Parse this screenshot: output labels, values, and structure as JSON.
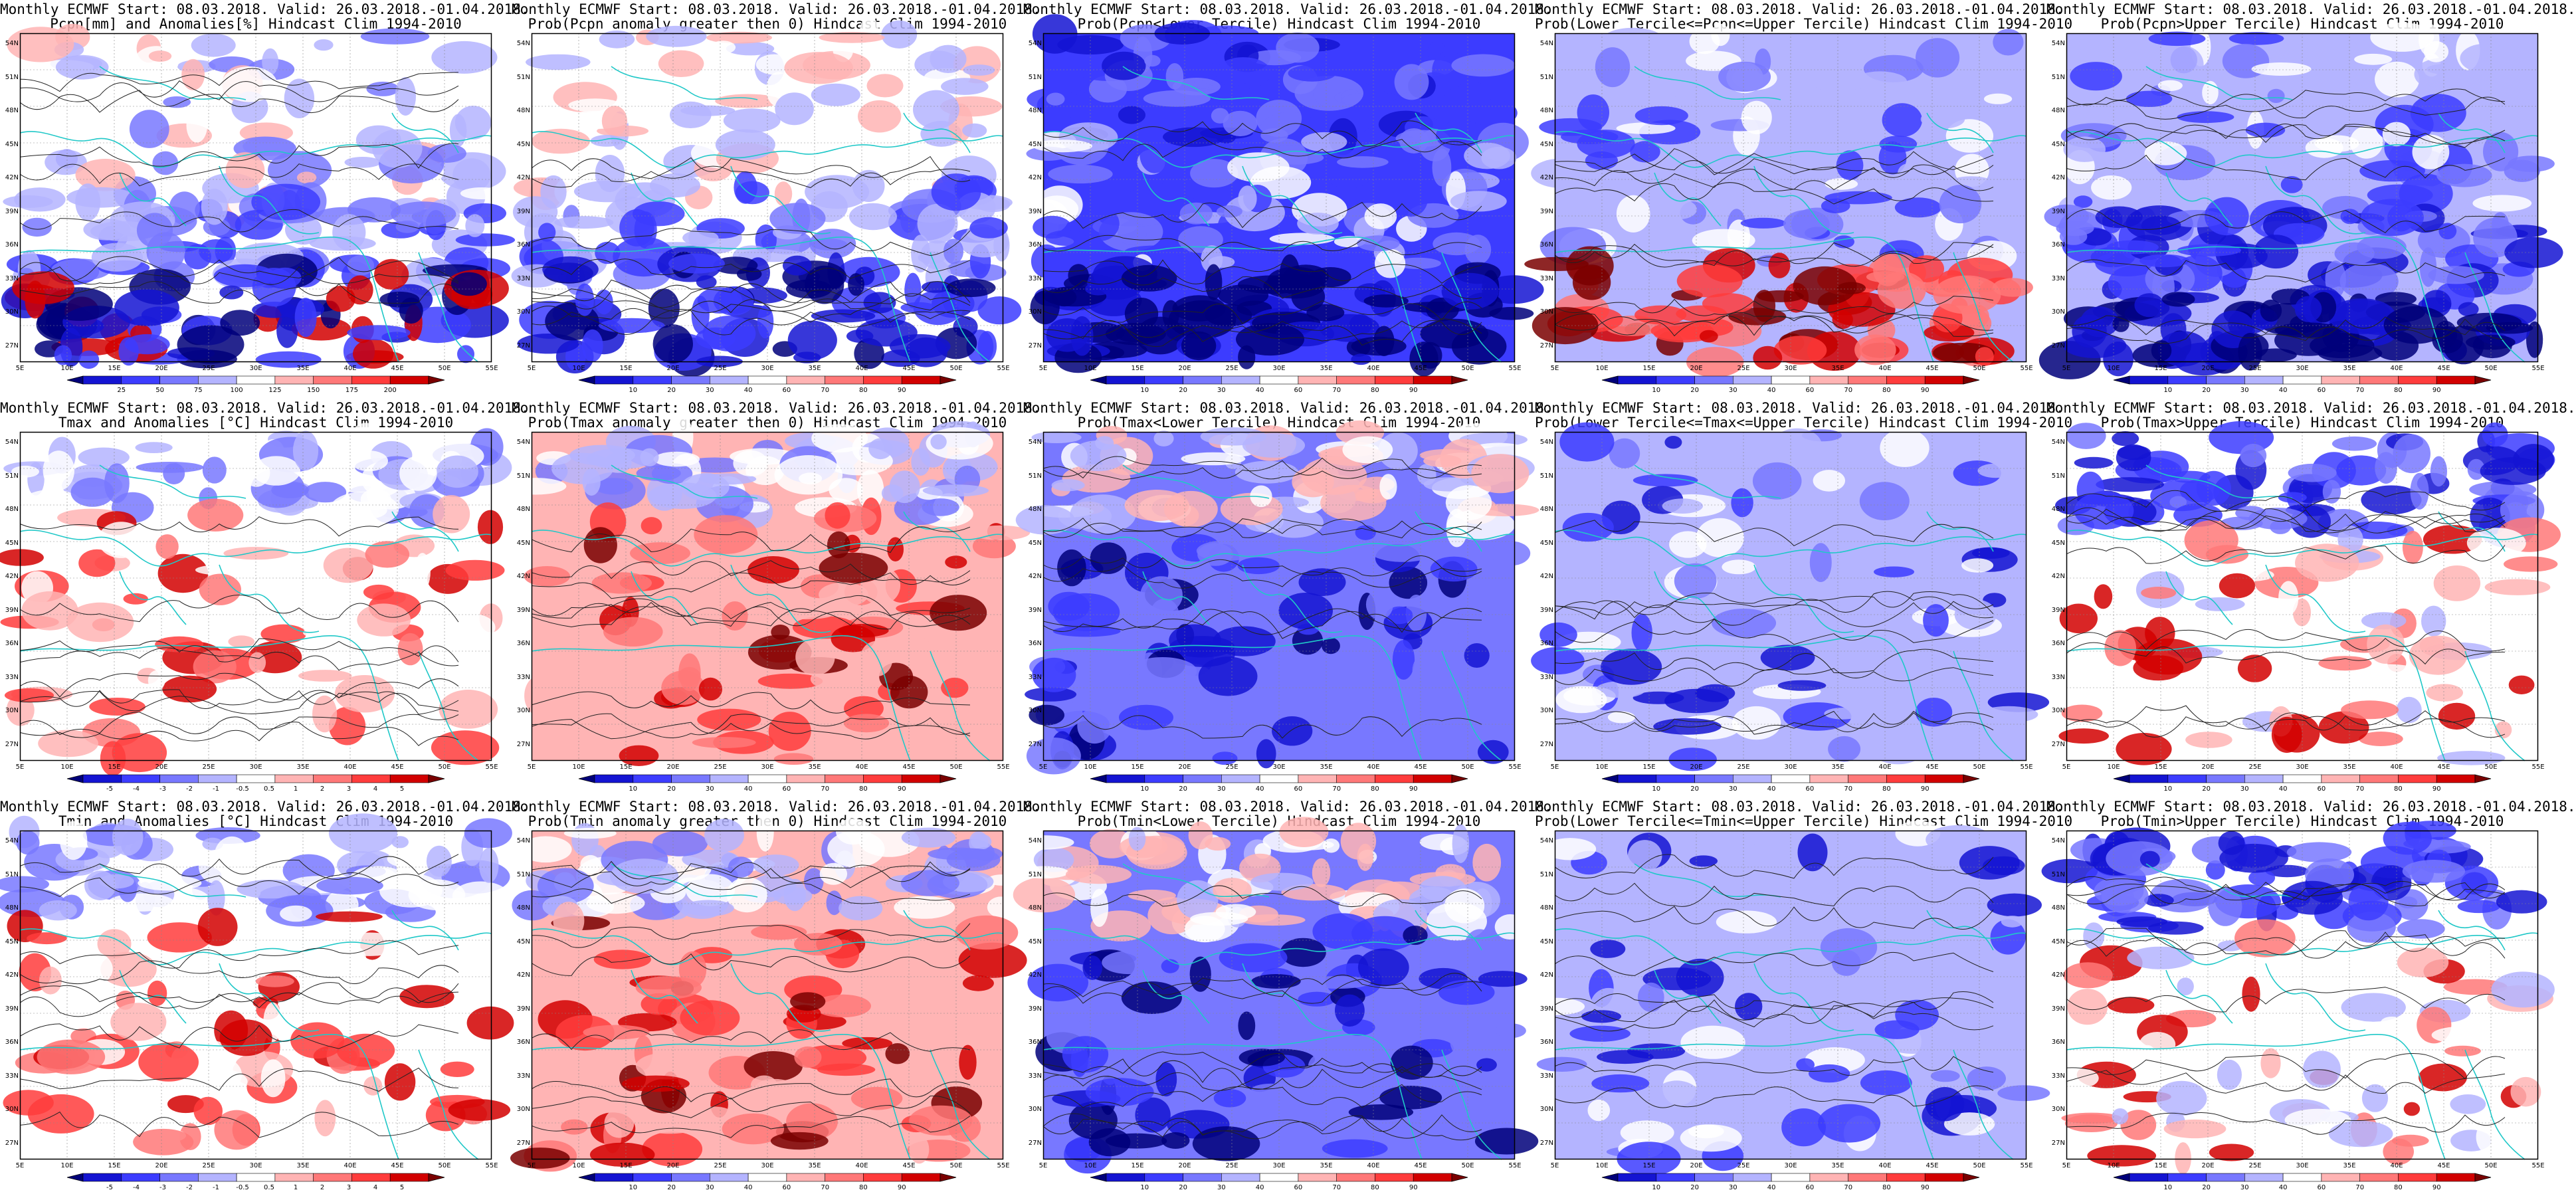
{
  "lat_labels": [
    "54N",
    "51N",
    "48N",
    "45N",
    "42N",
    "39N",
    "36N",
    "33N",
    "30N",
    "27N"
  ],
  "lon_labels": [
    "5E",
    "10E",
    "15E",
    "20E",
    "25E",
    "30E",
    "35E",
    "40E",
    "45E",
    "50E",
    "55E"
  ],
  "colorbars": {
    "pcpn_anom": {
      "ticks": [
        "25",
        "50",
        "75",
        "100",
        "125",
        "150",
        "175",
        "200"
      ],
      "colors": [
        "#00007a",
        "#1414d2",
        "#3c3cff",
        "#7878ff",
        "#b4b4ff",
        "#ffffff",
        "#ffb4b4",
        "#ff7878",
        "#ff3c3c",
        "#d20000",
        "#7a0000"
      ]
    },
    "prob": {
      "ticks": [
        "10",
        "20",
        "30",
        "40",
        "60",
        "70",
        "80",
        "90"
      ],
      "colors": [
        "#00007a",
        "#1414d2",
        "#3c3cff",
        "#7878ff",
        "#b4b4ff",
        "#ffffff",
        "#ffb4b4",
        "#ff7878",
        "#ff3c3c",
        "#d20000",
        "#7a0000"
      ]
    },
    "temp_anom": {
      "ticks": [
        "-5",
        "-4",
        "-3",
        "-2",
        "-1",
        "-0.5",
        "0.5",
        "1",
        "2",
        "3",
        "4",
        "5"
      ],
      "colors": [
        "#00007a",
        "#1414d2",
        "#3c3cff",
        "#7878ff",
        "#b4b4ff",
        "#ffffff",
        "#ffb4b4",
        "#ff7878",
        "#ff3c3c",
        "#d20000",
        "#7a0000"
      ]
    }
  },
  "panels": [
    {
      "line1": "Monthly ECMWF Start: 08.03.2018. Valid: 26.03.2018.-01.04.2018.",
      "line2": "Pcpn[mm] and Anomalies[%] Hindcast Clim 1994-2010",
      "cbar": "pcpn_anom",
      "style": "pcpn_anom"
    },
    {
      "line1": "Monthly ECMWF Start: 08.03.2018. Valid: 26.03.2018.-01.04.2018.",
      "line2": "Prob(Pcpn anomaly greater then 0) Hindcast Clim 1994-2010",
      "cbar": "prob",
      "style": "pcpn_gt0"
    },
    {
      "line1": "Monthly ECMWF Start: 08.03.2018. Valid: 26.03.2018.-01.04.2018.",
      "line2": "Prob(Pcpn<Lower Tercile) Hindcast Clim 1994-2010",
      "cbar": "prob",
      "style": "pcpn_low"
    },
    {
      "line1": "Monthly ECMWF Start: 08.03.2018. Valid: 26.03.2018.-01.04.2018.",
      "line2": "Prob(Lower Tercile<=Pcpn<=Upper Tercile) Hindcast Clim 1994-2010",
      "cbar": "prob",
      "style": "pcpn_mid"
    },
    {
      "line1": "Monthly ECMWF Start: 08.03.2018. Valid: 26.03.2018.-01.04.2018.",
      "line2": "Prob(Pcpn>Upper Tercile) Hindcast Clim 1994-2010",
      "cbar": "prob",
      "style": "pcpn_up"
    },
    {
      "line1": "Monthly ECMWF Start: 08.03.2018. Valid: 26.03.2018.-01.04.2018.",
      "line2": "Tmax and Anomalies [°C] Hindcast Clim 1994-2010",
      "cbar": "temp_anom",
      "style": "t_anom"
    },
    {
      "line1": "Monthly ECMWF Start: 08.03.2018. Valid: 26.03.2018.-01.04.2018.",
      "line2": "Prob(Tmax anomaly greater then 0) Hindcast Clim 1994-2010",
      "cbar": "prob",
      "style": "t_gt0"
    },
    {
      "line1": "Monthly ECMWF Start: 08.03.2018. Valid: 26.03.2018.-01.04.2018.",
      "line2": "Prob(Tmax<Lower Tercile) Hindcast Clim 1994-2010",
      "cbar": "prob",
      "style": "t_low"
    },
    {
      "line1": "Monthly ECMWF Start: 08.03.2018. Valid: 26.03.2018.-01.04.2018.",
      "line2": "Prob(Lower Tercile<=Tmax<=Upper Tercile) Hindcast Clim 1994-2010",
      "cbar": "prob",
      "style": "t_mid"
    },
    {
      "line1": "Monthly ECMWF Start: 08.03.2018. Valid: 26.03.2018.-01.04.2018.",
      "line2": "Prob(Tmax>Upper Tercile) Hindcast Clim 1994-2010",
      "cbar": "prob",
      "style": "t_up"
    },
    {
      "line1": "Monthly ECMWF Start: 08.03.2018. Valid: 26.03.2018.-01.04.2018.",
      "line2": "Tmin and Anomalies [°C] Hindcast Clim 1994-2010",
      "cbar": "temp_anom",
      "style": "t_anom"
    },
    {
      "line1": "Monthly ECMWF Start: 08.03.2018. Valid: 26.03.2018.-01.04.2018.",
      "line2": "Prob(Tmin anomaly greater then 0) Hindcast Clim 1994-2010",
      "cbar": "prob",
      "style": "t_gt0"
    },
    {
      "line1": "Monthly ECMWF Start: 08.03.2018. Valid: 26.03.2018.-01.04.2018.",
      "line2": "Prob(Tmin<Lower Tercile) Hindcast Clim 1994-2010",
      "cbar": "prob",
      "style": "t_low"
    },
    {
      "line1": "Monthly ECMWF Start: 08.03.2018. Valid: 26.03.2018.-01.04.2018.",
      "line2": "Prob(Lower Tercile<=Tmin<=Upper Tercile) Hindcast Clim 1994-2010",
      "cbar": "prob",
      "style": "t_mid"
    },
    {
      "line1": "Monthly ECMWF Start: 08.03.2018. Valid: 26.03.2018.-01.04.2018.",
      "line2": "Prob(Tmin>Upper Tercile) Hindcast Clim 1994-2010",
      "cbar": "prob",
      "style": "t_up"
    }
  ]
}
